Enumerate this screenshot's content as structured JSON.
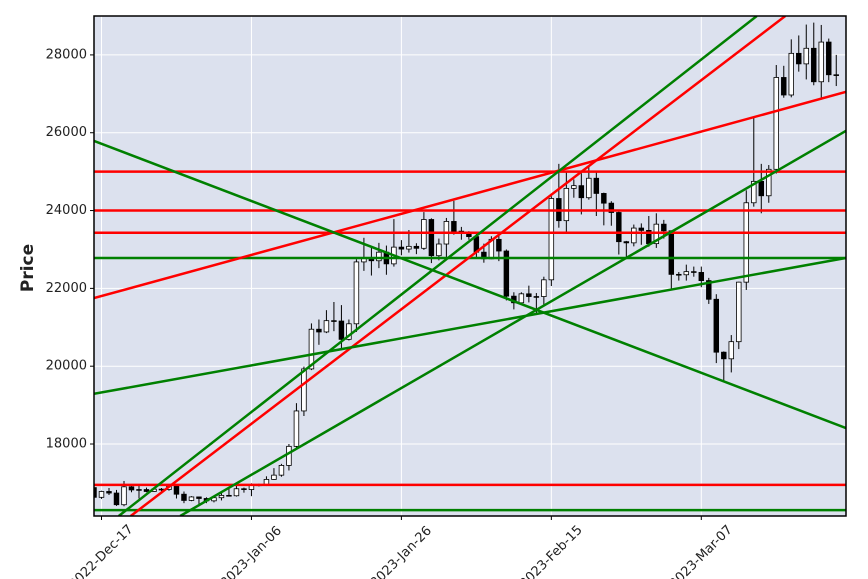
{
  "chart_data": {
    "type": "candlestick",
    "y_label": "Price",
    "xlim": [
      0,
      100.3
    ],
    "ylim": [
      16150,
      29000
    ],
    "xticks": [
      {
        "value": 1,
        "label": "2022-Dec-17"
      },
      {
        "value": 21,
        "label": "2023-Jan-06"
      },
      {
        "value": 41,
        "label": "2023-Jan-26"
      },
      {
        "value": 61,
        "label": "2023-Feb-15"
      },
      {
        "value": 81,
        "label": "2023-Mar-07"
      }
    ],
    "yticks": [
      18000,
      20000,
      22000,
      24000,
      26000,
      28000
    ],
    "grid": true,
    "background": "#dce1ee",
    "up_color": "#ffffff",
    "down_color": "#000000",
    "edge_color": "#000000",
    "open": [
      16880,
      16630,
      16780,
      16740,
      16440,
      16900,
      16820,
      16830,
      16780,
      16840,
      16830,
      16920,
      16710,
      16550,
      16640,
      16600,
      16540,
      16620,
      16680,
      16670,
      16850,
      16830,
      16950,
      16940,
      17090,
      17200,
      17450,
      17940,
      18850,
      19930,
      20950,
      20880,
      21170,
      21160,
      20690,
      21090,
      22680,
      22780,
      22710,
      22930,
      22630,
      23060,
      23010,
      23080,
      23030,
      23770,
      22840,
      23140,
      23720,
      23470,
      23430,
      23330,
      22930,
      22760,
      23260,
      22960,
      21800,
      21630,
      21860,
      21790,
      21790,
      22220,
      24310,
      23740,
      24570,
      24640,
      24330,
      24830,
      24440,
      24190,
      23950,
      23200,
      23170,
      23550,
      23490,
      23150,
      23650,
      23480,
      22360,
      22350,
      22430,
      22410,
      22200,
      21720,
      20360,
      20190,
      20630,
      22160,
      24200,
      24750,
      24380,
      25060,
      27420,
      26970,
      28040,
      27770,
      28170,
      27310,
      28330,
      27490
    ],
    "high": [
      16950,
      16800,
      16870,
      16820,
      17050,
      16920,
      16940,
      16880,
      16870,
      16870,
      16960,
      16950,
      16780,
      16660,
      16650,
      16630,
      16640,
      16760,
      16880,
      16990,
      16880,
      16990,
      16980,
      17170,
      17380,
      17490,
      18000,
      19050,
      19990,
      21100,
      21200,
      21440,
      21650,
      21570,
      21200,
      22750,
      23300,
      23080,
      23170,
      23100,
      23780,
      23240,
      23500,
      23160,
      23960,
      23800,
      23280,
      23810,
      24250,
      23580,
      23470,
      23430,
      23150,
      23340,
      23440,
      23000,
      21900,
      21900,
      22070,
      21880,
      22300,
      24370,
      25200,
      25010,
      24800,
      24960,
      25120,
      25000,
      24460,
      24240,
      23990,
      23220,
      23640,
      23670,
      23860,
      23930,
      23760,
      23490,
      22420,
      22610,
      22560,
      22560,
      22270,
      21850,
      20380,
      20800,
      22170,
      24520,
      26400,
      25200,
      25170,
      27740,
      27720,
      28400,
      28500,
      28780,
      28830,
      28770,
      28420,
      28000
    ],
    "low": [
      16560,
      16590,
      16690,
      16410,
      16400,
      16760,
      16600,
      16760,
      16770,
      16740,
      16800,
      16600,
      16480,
      16530,
      16400,
      16480,
      16500,
      16550,
      16650,
      16650,
      16750,
      16660,
      16910,
      16920,
      17080,
      17160,
      17320,
      17910,
      18720,
      19900,
      20550,
      20850,
      20900,
      20410,
      20660,
      20880,
      22450,
      22330,
      22520,
      22350,
      22560,
      22850,
      22920,
      22880,
      22990,
      22650,
      22720,
      22780,
      23380,
      23250,
      23250,
      22770,
      22660,
      22750,
      22700,
      21690,
      21460,
      21600,
      21640,
      21360,
      21540,
      22060,
      23560,
      23400,
      24330,
      23900,
      24280,
      23860,
      23620,
      23610,
      22870,
      22800,
      23080,
      23120,
      23070,
      23040,
      23280,
      21970,
      22200,
      22200,
      22300,
      22030,
      21600,
      20080,
      19620,
      19840,
      20440,
      21960,
      24100,
      23930,
      24200,
      24950,
      26900,
      26910,
      27570,
      27370,
      27220,
      26850,
      27300,
      27200
    ],
    "close": [
      16630,
      16780,
      16740,
      16440,
      16900,
      16820,
      16830,
      16780,
      16840,
      16830,
      16920,
      16710,
      16550,
      16640,
      16600,
      16540,
      16620,
      16680,
      16670,
      16850,
      16830,
      16950,
      16940,
      17090,
      17200,
      17450,
      17940,
      18850,
      19930,
      20950,
      20880,
      21170,
      21160,
      20690,
      21090,
      22680,
      22780,
      22710,
      22930,
      22630,
      23060,
      23010,
      23080,
      23030,
      23770,
      22840,
      23140,
      23720,
      23470,
      23430,
      23330,
      22930,
      22760,
      23260,
      22960,
      21800,
      21630,
      21860,
      21790,
      21790,
      22220,
      24310,
      23740,
      24570,
      24640,
      24330,
      24830,
      24440,
      24190,
      23950,
      23200,
      23170,
      23550,
      23490,
      23150,
      23650,
      23480,
      22360,
      22350,
      22430,
      22410,
      22200,
      21720,
      20360,
      20190,
      20630,
      22160,
      24200,
      24750,
      24380,
      25060,
      27420,
      26970,
      28040,
      27770,
      28170,
      27310,
      28330,
      27490,
      27490
    ],
    "hlines": [
      {
        "y": 25000,
        "color": "#ff0000"
      },
      {
        "y": 24000,
        "color": "#ff0000"
      },
      {
        "y": 23430,
        "color": "#ff0000"
      },
      {
        "y": 16950,
        "color": "#ff0000"
      },
      {
        "y": 22780,
        "color": "#008000"
      },
      {
        "y": 16300,
        "color": "#008000"
      }
    ],
    "lines": [
      {
        "points": [
          [
            0,
            21750
          ],
          [
            100.3,
            27050
          ]
        ],
        "color": "#ff0000"
      },
      {
        "points": [
          [
            4.9,
            16150
          ],
          [
            92.2,
            29000
          ]
        ],
        "color": "#ff0000"
      },
      {
        "points": [
          [
            3.3,
            16150
          ],
          [
            88.4,
            29000
          ]
        ],
        "color": "#008000"
      },
      {
        "points": [
          [
            0,
            25790
          ],
          [
            100.3,
            18410
          ]
        ],
        "color": "#008000"
      },
      {
        "points": [
          [
            0,
            19290
          ],
          [
            100.3,
            22780
          ]
        ],
        "color": "#008000"
      },
      {
        "points": [
          [
            11.5,
            16150
          ],
          [
            100.3,
            26050
          ]
        ],
        "color": "#008000"
      }
    ]
  }
}
